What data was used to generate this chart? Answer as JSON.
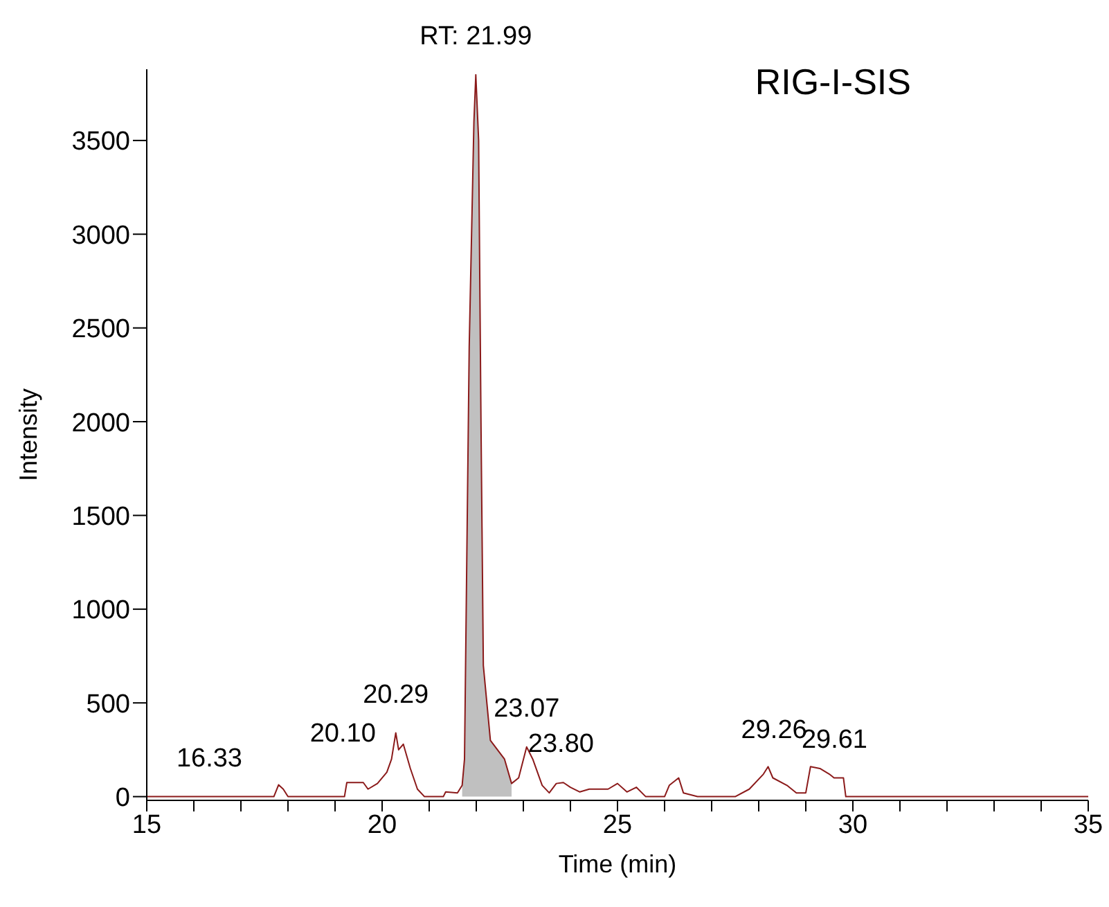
{
  "chart_data": {
    "type": "line",
    "xlabel": "Time (min)",
    "ylabel": "Intensity",
    "xlim": [
      15,
      35
    ],
    "ylim": [
      -20,
      3880
    ],
    "xticks": [
      15,
      {
        "value": 16,
        "label": null
      },
      {
        "value": 17,
        "label": null
      },
      {
        "value": 18,
        "label": null
      },
      {
        "value": 19,
        "label": null
      },
      20,
      {
        "value": 21,
        "label": null
      },
      {
        "value": 22,
        "label": null
      },
      {
        "value": 23,
        "label": null
      },
      {
        "value": 24,
        "label": null
      },
      25,
      {
        "value": 26,
        "label": null
      },
      {
        "value": 27,
        "label": null
      },
      {
        "value": 28,
        "label": null
      },
      {
        "value": 29,
        "label": null
      },
      30,
      {
        "value": 31,
        "label": null
      },
      {
        "value": 32,
        "label": null
      },
      {
        "value": 33,
        "label": null
      },
      {
        "value": 34,
        "label": null
      },
      35
    ],
    "yticks": [
      0,
      500,
      1000,
      1500,
      2000,
      2500,
      3000,
      3500
    ],
    "grid": false,
    "legend": false,
    "marker": "none",
    "series": [
      {
        "type": "area",
        "color": "#c0c0c0",
        "x": [
          21.7,
          21.75,
          21.85,
          21.95,
          21.99,
          22.05,
          22.1,
          22.15,
          22.3,
          22.6,
          22.75
        ],
        "values": [
          60,
          200,
          2400,
          3600,
          3850,
          3500,
          2000,
          700,
          300,
          200,
          70
        ]
      },
      {
        "color": "#8b1a1a",
        "x": [
          15,
          17.7,
          17.8,
          17.9,
          18.0,
          19.2,
          19.25,
          19.6,
          19.7,
          19.9,
          20.1,
          20.2,
          20.29,
          20.35,
          20.45,
          20.6,
          20.75,
          20.9,
          21.3,
          21.35,
          21.6,
          21.7,
          21.75,
          21.85,
          21.95,
          21.99,
          22.05,
          22.1,
          22.15,
          22.3,
          22.6,
          22.75,
          22.9,
          23.07,
          23.2,
          23.4,
          23.55,
          23.7,
          23.85,
          24.0,
          24.2,
          24.4,
          24.8,
          25.0,
          25.2,
          25.4,
          25.6,
          26.0,
          26.1,
          26.3,
          26.4,
          26.7,
          27.5,
          27.8,
          28.1,
          28.2,
          28.3,
          28.6,
          28.8,
          29.0,
          29.1,
          29.3,
          29.5,
          29.6,
          29.8,
          29.85,
          35
        ],
        "values": [
          0,
          0,
          63,
          40,
          0,
          0,
          75,
          75,
          40,
          70,
          130,
          200,
          340,
          250,
          280,
          150,
          40,
          0,
          0,
          25,
          20,
          60,
          200,
          2400,
          3600,
          3850,
          3500,
          2000,
          700,
          300,
          200,
          70,
          100,
          265,
          200,
          60,
          20,
          70,
          75,
          50,
          25,
          40,
          40,
          70,
          25,
          50,
          0,
          0,
          60,
          100,
          20,
          0,
          0,
          40,
          120,
          160,
          100,
          60,
          20,
          20,
          160,
          150,
          120,
          100,
          100,
          0,
          0
        ]
      }
    ],
    "annotations": [
      "RIG-I-SIS",
      {
        "text": "RT: 21.99",
        "x": 21.99,
        "y": 3850
      },
      {
        "text": "16.33",
        "x": 16.33,
        "y": 0
      },
      {
        "text": "20.10",
        "x": 20.1,
        "y": 130
      },
      {
        "text": "20.29",
        "x": 20.29,
        "y": 340
      },
      {
        "text": "23.07",
        "x": 23.07,
        "y": 265
      },
      {
        "text": "23.80",
        "x": 23.8,
        "y": 75
      },
      {
        "text": "29.26",
        "x": 29.26,
        "y": 150
      },
      {
        "text": "29.61",
        "x": 29.61,
        "y": 100
      }
    ]
  }
}
